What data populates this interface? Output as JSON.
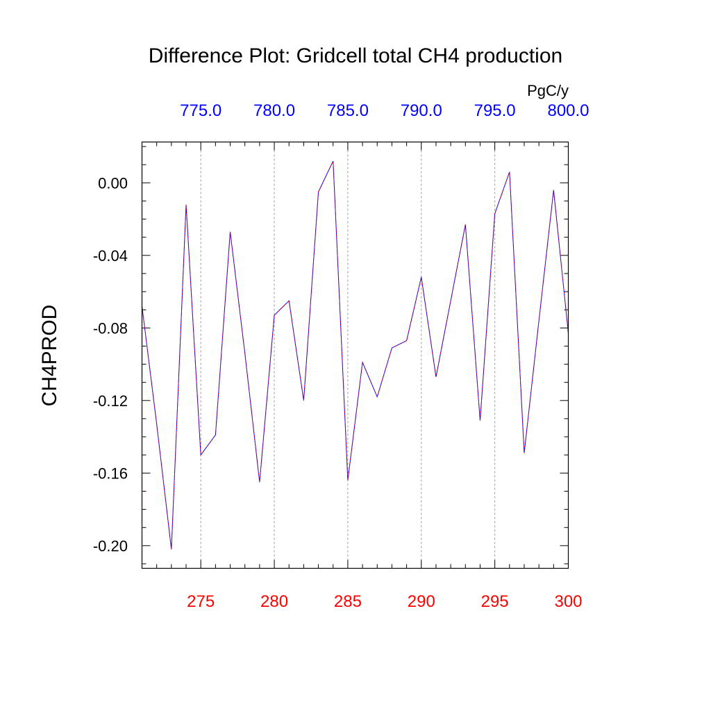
{
  "chart_data": {
    "type": "line",
    "title": "Difference Plot: Gridcell total CH4 production",
    "ylabel": "CH4PROD",
    "units_label": "PgC/y",
    "xlim": [
      271,
      300
    ],
    "ylim": [
      -0.2125,
      0.0225
    ],
    "x_ticks": [
      275,
      280,
      285,
      290,
      295,
      300
    ],
    "x_tick_labels": [
      "275",
      "280",
      "285",
      "290",
      "295",
      "300"
    ],
    "top_tick_labels": [
      "775.0",
      "780.0",
      "785.0",
      "790.0",
      "795.0",
      "800.0"
    ],
    "y_ticks": [
      0.0,
      -0.04,
      -0.08,
      -0.12,
      -0.16,
      -0.2
    ],
    "y_tick_labels": [
      "0.00",
      "-0.04",
      "-0.08",
      "-0.12",
      "-0.16",
      "-0.20"
    ],
    "grid": "vertical dashed at major x ticks",
    "colors": {
      "bottom_tick_labels": "#ff0000",
      "top_tick_labels": "#0000ff",
      "series_a": "#ff0000",
      "series_b": "#0000ff",
      "text": "#000000",
      "grid": "#9a9a9a"
    },
    "series": [
      {
        "x": [
          271,
          272,
          273,
          274,
          275,
          276,
          277,
          278,
          279,
          280,
          281,
          282,
          283,
          284,
          285,
          286,
          287,
          288,
          289,
          290,
          291,
          292,
          293,
          294,
          295,
          296,
          297,
          298,
          299,
          300
        ],
        "values": [
          -0.068,
          -0.133,
          -0.202,
          -0.012,
          -0.15,
          -0.139,
          -0.027,
          -0.094,
          -0.165,
          -0.073,
          -0.065,
          -0.12,
          -0.005,
          0.012,
          -0.164,
          -0.099,
          -0.118,
          -0.091,
          -0.087,
          -0.052,
          -0.107,
          -0.065,
          -0.023,
          -0.131,
          -0.017,
          0.006,
          -0.149,
          -0.076,
          -0.004,
          -0.083
        ]
      }
    ]
  }
}
